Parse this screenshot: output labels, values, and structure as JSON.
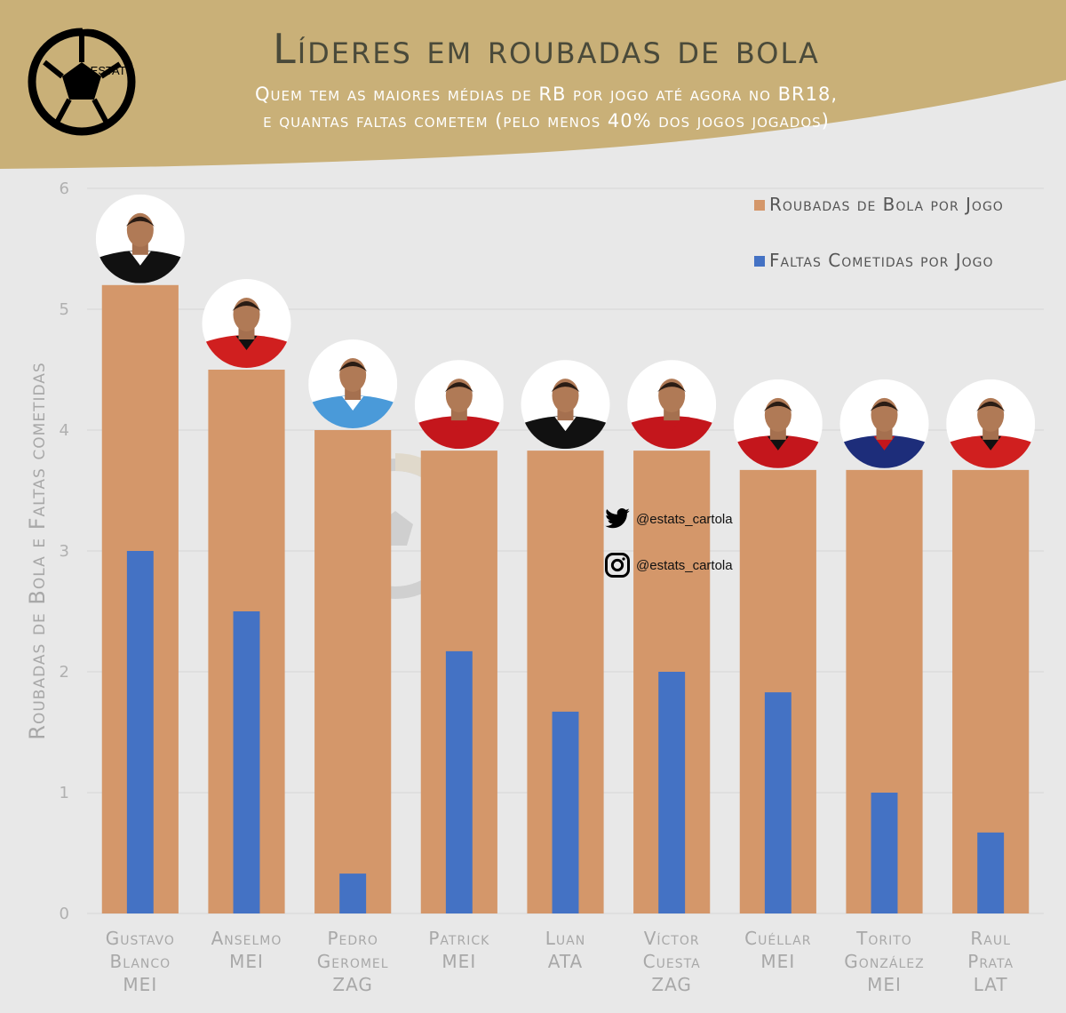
{
  "header": {
    "title": "Líderes em roubadas de bola",
    "subtitle_line1": "Quem tem as maiores médias de RB por jogo até agora no BR18,",
    "subtitle_line2": "e quantas faltas cometem (pelo menos 40% dos jogos jogados)",
    "logo_text": "ESTATS",
    "accent_color": "#c9b078",
    "background_color": "#e8e8e8"
  },
  "social": {
    "twitter_handle": "@estats_cartola",
    "instagram_handle": "@estats_cartola",
    "twitter_icon": "twitter-bird-icon",
    "instagram_icon": "instagram-icon"
  },
  "chart_data": {
    "type": "bar",
    "ylabel": "Roubadas de Bola e Faltas cometidas",
    "xlabel": "",
    "ylim": [
      0,
      6
    ],
    "yticks": [
      "0",
      "1",
      "2",
      "3",
      "4",
      "5",
      "6"
    ],
    "grid": true,
    "legend_placement": "top-right",
    "categories": [
      [
        "Gustavo",
        "Blanco",
        "MEI"
      ],
      [
        "Anselmo",
        "MEI"
      ],
      [
        "Pedro",
        "Geromel",
        "ZAG"
      ],
      [
        "Patrick",
        "MEI"
      ],
      [
        "Luan",
        "ATA"
      ],
      [
        "Víctor",
        "Cuesta",
        "ZAG"
      ],
      [
        "Cuéllar",
        "MEI"
      ],
      [
        "Torito",
        "González",
        "MEI"
      ],
      [
        "Raul",
        "Prata",
        "LAT"
      ]
    ],
    "series": [
      {
        "name": "Roubadas de Bola por Jogo",
        "color": "#d4976a",
        "values": [
          5.2,
          4.5,
          4.0,
          3.83,
          3.83,
          3.83,
          3.67,
          3.67,
          3.67
        ]
      },
      {
        "name": "Faltas Cometidas por Jogo",
        "color": "#4472c4",
        "values": [
          3.0,
          2.5,
          0.33,
          2.17,
          1.67,
          2.0,
          1.83,
          1.0,
          0.67
        ]
      }
    ],
    "player_photos": [
      "avatar",
      "avatar",
      "avatar",
      "avatar",
      "avatar",
      "avatar",
      "avatar",
      "avatar",
      "avatar"
    ],
    "jersey_colors": [
      [
        "#111111",
        "#ffffff"
      ],
      [
        "#d01f1f",
        "#111111"
      ],
      [
        "#4a9ad9",
        "#ffffff"
      ],
      [
        "#c4161c",
        "#c4161c"
      ],
      [
        "#111111",
        "#ffffff"
      ],
      [
        "#c4161c",
        "#c4161c"
      ],
      [
        "#c4161c",
        "#111111"
      ],
      [
        "#1d2d7a",
        "#c4161c"
      ],
      [
        "#d01f1f",
        "#111111"
      ]
    ]
  }
}
